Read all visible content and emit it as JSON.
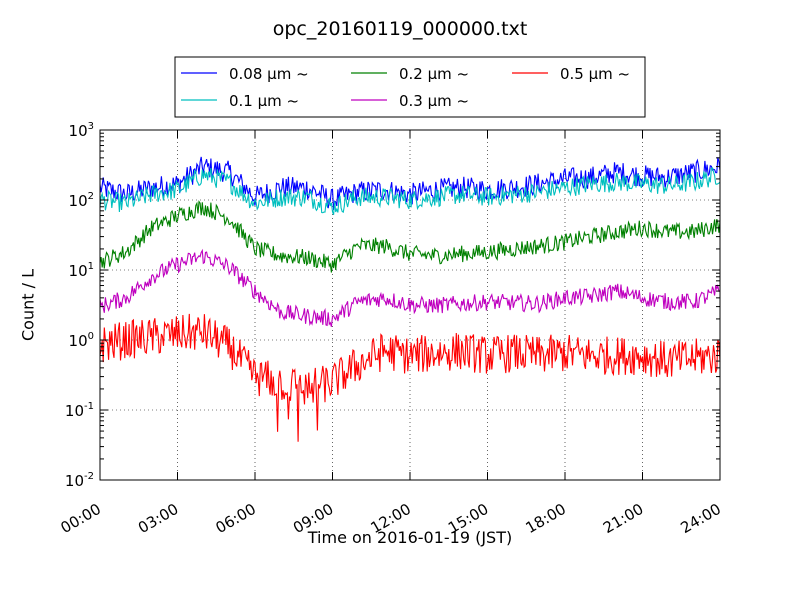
{
  "chart_data": {
    "type": "line",
    "title": "opc_20160119_000000.txt",
    "xlabel": "Time on 2016-01-19 (JST)",
    "ylabel": "Count / L",
    "yscale": "log",
    "ylim": [
      0.01,
      1000
    ],
    "xlim": [
      "2016-01-19 00:00",
      "2016-01-20 00:00"
    ],
    "x_tick_labels": [
      "00:00",
      "03:00",
      "06:00",
      "09:00",
      "12:00",
      "15:00",
      "18:00",
      "21:00",
      "24:00"
    ],
    "y_tick_labels": [
      {
        "base": "10",
        "exp": "-2"
      },
      {
        "base": "10",
        "exp": "-1"
      },
      {
        "base": "10",
        "exp": "0"
      },
      {
        "base": "10",
        "exp": "1"
      },
      {
        "base": "10",
        "exp": "2"
      },
      {
        "base": "10",
        "exp": "3"
      }
    ],
    "grid": true,
    "legend_position": "top, above plot",
    "x_hours": [
      0,
      1,
      2,
      3,
      4,
      5,
      6,
      7,
      8,
      9,
      10,
      11,
      12,
      13,
      14,
      15,
      16,
      17,
      18,
      19,
      20,
      21,
      22,
      23,
      24
    ],
    "series": [
      {
        "name": "0.08 μm ~",
        "color": "#0000ff",
        "values": [
          150,
          120,
          150,
          170,
          300,
          250,
          110,
          150,
          150,
          100,
          130,
          140,
          120,
          140,
          150,
          140,
          150,
          170,
          200,
          210,
          250,
          220,
          210,
          250,
          300
        ]
      },
      {
        "name": "0.1 μm ~",
        "color": "#00bfbf",
        "values": [
          100,
          90,
          120,
          140,
          230,
          180,
          90,
          110,
          110,
          80,
          110,
          110,
          100,
          110,
          120,
          110,
          120,
          130,
          150,
          170,
          180,
          170,
          160,
          180,
          230
        ]
      },
      {
        "name": "0.2 μm ~",
        "color": "#008000",
        "values": [
          13,
          18,
          40,
          60,
          80,
          55,
          20,
          16,
          15,
          12,
          22,
          22,
          17,
          16,
          17,
          18,
          20,
          22,
          25,
          30,
          35,
          40,
          35,
          35,
          45
        ]
      },
      {
        "name": "0.3 μm ~",
        "color": "#bf00bf",
        "values": [
          3,
          4,
          8,
          12,
          16,
          11,
          5,
          2.5,
          2.2,
          2.0,
          3.5,
          4,
          3.2,
          3.1,
          3.3,
          3.5,
          3.4,
          3.3,
          4,
          4.2,
          5,
          4,
          3.5,
          3.5,
          5
        ]
      },
      {
        "name": "0.5 μm ~",
        "color": "#ff0000",
        "values": [
          0.85,
          1.0,
          1.1,
          1.2,
          1.3,
          0.8,
          0.3,
          0.25,
          0.2,
          0.25,
          0.45,
          0.7,
          0.6,
          0.65,
          0.7,
          0.6,
          0.65,
          0.6,
          0.65,
          0.6,
          0.6,
          0.6,
          0.5,
          0.55,
          0.6
        ]
      }
    ]
  }
}
